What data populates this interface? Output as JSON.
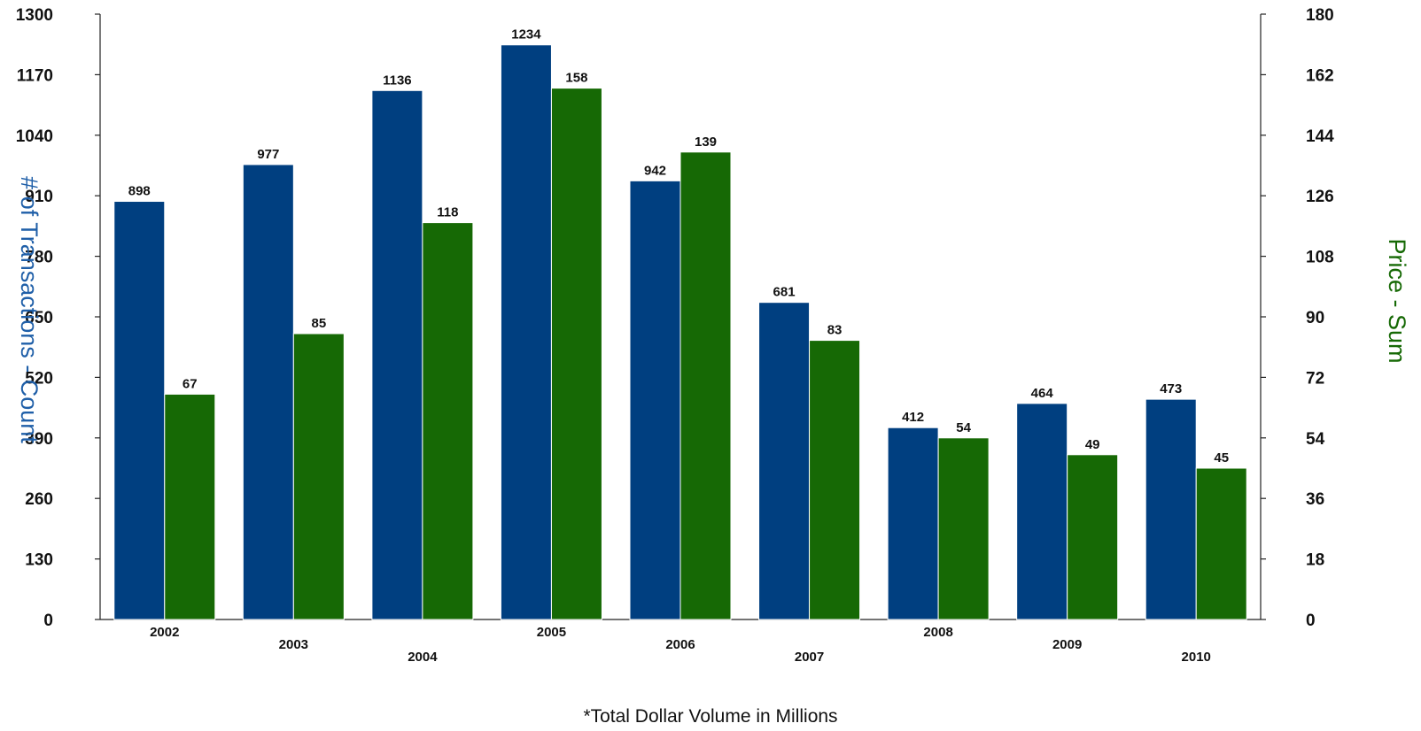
{
  "chart_data": {
    "type": "bar",
    "categories": [
      "2002",
      "2003",
      "2004",
      "2005",
      "2006",
      "2007",
      "2008",
      "2009",
      "2010"
    ],
    "series": [
      {
        "name": "# of Transactions - Count",
        "axis": "left",
        "color": "#003F80",
        "values": [
          898,
          977,
          1136,
          1234,
          942,
          681,
          412,
          464,
          473
        ]
      },
      {
        "name": "Price - Sum",
        "axis": "right",
        "color": "#166905",
        "values": [
          67,
          85,
          118,
          158,
          139,
          83,
          54,
          49,
          45
        ]
      }
    ],
    "ylabel_left": "# of Transactions - Count",
    "ylabel_right": "Price - Sum",
    "ylim_left": [
      0,
      1300
    ],
    "yticks_left": [
      0,
      130,
      260,
      390,
      520,
      650,
      780,
      910,
      1040,
      1170,
      1300
    ],
    "ylim_right": [
      0,
      180
    ],
    "yticks_right": [
      0,
      18,
      36,
      54,
      72,
      90,
      108,
      126,
      144,
      162,
      180
    ],
    "grid": false,
    "footnote": "*Total Dollar Volume in Millions",
    "left_title_color": "#1F5FA8",
    "right_title_color": "#166905"
  }
}
